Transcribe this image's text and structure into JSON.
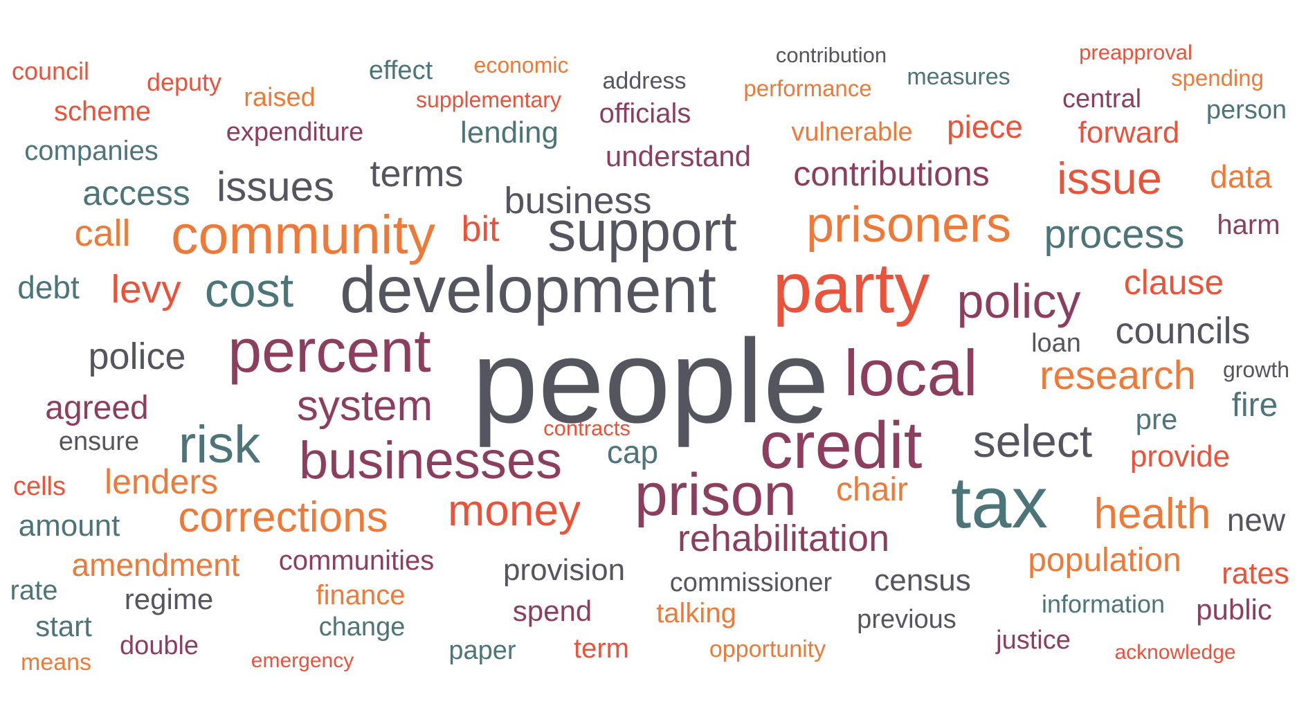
{
  "colors": {
    "slate": "#55555F",
    "teal": "#4D7478",
    "plum": "#8B3E5E",
    "red": "#EA533B",
    "orange": "#EC7A3A"
  },
  "words": [
    {
      "text": "people",
      "color": "slate"
    },
    {
      "text": "party",
      "color": "red"
    },
    {
      "text": "development",
      "color": "slate"
    },
    {
      "text": "credit",
      "color": "plum"
    },
    {
      "text": "tax",
      "color": "teal"
    },
    {
      "text": "support",
      "color": "slate"
    },
    {
      "text": "local",
      "color": "plum"
    },
    {
      "text": "percent",
      "color": "plum"
    },
    {
      "text": "prison",
      "color": "plum"
    },
    {
      "text": "community",
      "color": "orange"
    },
    {
      "text": "prisoners",
      "color": "orange"
    },
    {
      "text": "businesses",
      "color": "plum"
    },
    {
      "text": "risk",
      "color": "teal"
    },
    {
      "text": "cost",
      "color": "teal"
    },
    {
      "text": "policy",
      "color": "plum"
    },
    {
      "text": "select",
      "color": "slate"
    },
    {
      "text": "system",
      "color": "plum"
    },
    {
      "text": "corrections",
      "color": "orange"
    },
    {
      "text": "money",
      "color": "red"
    },
    {
      "text": "issue",
      "color": "red"
    },
    {
      "text": "research",
      "color": "orange"
    },
    {
      "text": "process",
      "color": "teal"
    },
    {
      "text": "rehabilitation",
      "color": "plum"
    },
    {
      "text": "health",
      "color": "orange"
    },
    {
      "text": "issues",
      "color": "slate"
    },
    {
      "text": "business",
      "color": "slate"
    },
    {
      "text": "councils",
      "color": "slate"
    },
    {
      "text": "police",
      "color": "slate"
    },
    {
      "text": "levy",
      "color": "red"
    },
    {
      "text": "clause",
      "color": "red"
    },
    {
      "text": "terms",
      "color": "slate"
    },
    {
      "text": "access",
      "color": "teal"
    },
    {
      "text": "lenders",
      "color": "orange"
    },
    {
      "text": "contributions",
      "color": "plum"
    },
    {
      "text": "population",
      "color": "orange"
    },
    {
      "text": "agreed",
      "color": "plum"
    },
    {
      "text": "call",
      "color": "orange"
    },
    {
      "text": "chair",
      "color": "orange"
    },
    {
      "text": "cap",
      "color": "teal"
    },
    {
      "text": "provide",
      "color": "red"
    },
    {
      "text": "fire",
      "color": "teal"
    },
    {
      "text": "bit",
      "color": "red"
    },
    {
      "text": "piece",
      "color": "red"
    },
    {
      "text": "data",
      "color": "orange"
    },
    {
      "text": "forward",
      "color": "red"
    },
    {
      "text": "amendment",
      "color": "orange"
    },
    {
      "text": "census",
      "color": "slate"
    },
    {
      "text": "provision",
      "color": "slate"
    },
    {
      "text": "understand",
      "color": "plum"
    },
    {
      "text": "debt",
      "color": "teal"
    },
    {
      "text": "new",
      "color": "slate"
    },
    {
      "text": "rates",
      "color": "red"
    },
    {
      "text": "harm",
      "color": "plum"
    },
    {
      "text": "lending",
      "color": "teal"
    },
    {
      "text": "amount",
      "color": "teal"
    },
    {
      "text": "regime",
      "color": "slate"
    },
    {
      "text": "communities",
      "color": "plum"
    },
    {
      "text": "commissioner",
      "color": "slate"
    },
    {
      "text": "spend",
      "color": "plum"
    },
    {
      "text": "talking",
      "color": "orange"
    },
    {
      "text": "public",
      "color": "plum"
    },
    {
      "text": "term",
      "color": "red"
    },
    {
      "text": "officials",
      "color": "plum"
    },
    {
      "text": "expenditure",
      "color": "plum"
    },
    {
      "text": "companies",
      "color": "teal"
    },
    {
      "text": "scheme",
      "color": "red"
    },
    {
      "text": "finance",
      "color": "orange"
    },
    {
      "text": "previous",
      "color": "slate"
    },
    {
      "text": "pre",
      "color": "teal"
    },
    {
      "text": "central",
      "color": "plum"
    },
    {
      "text": "person",
      "color": "teal"
    },
    {
      "text": "vulnerable",
      "color": "orange"
    },
    {
      "text": "raised",
      "color": "orange"
    },
    {
      "text": "loan",
      "color": "slate"
    },
    {
      "text": "start",
      "color": "teal"
    },
    {
      "text": "rate",
      "color": "teal"
    },
    {
      "text": "justice",
      "color": "plum"
    },
    {
      "text": "change",
      "color": "teal"
    },
    {
      "text": "paper",
      "color": "teal"
    },
    {
      "text": "double",
      "color": "plum"
    },
    {
      "text": "means",
      "color": "orange"
    },
    {
      "text": "information",
      "color": "teal"
    },
    {
      "text": "opportunity",
      "color": "orange"
    },
    {
      "text": "ensure",
      "color": "slate"
    },
    {
      "text": "cells",
      "color": "red"
    },
    {
      "text": "council",
      "color": "red"
    },
    {
      "text": "effect",
      "color": "teal"
    },
    {
      "text": "deputy",
      "color": "red"
    },
    {
      "text": "address",
      "color": "slate"
    },
    {
      "text": "measures",
      "color": "teal"
    },
    {
      "text": "spending",
      "color": "orange"
    },
    {
      "text": "growth",
      "color": "slate"
    },
    {
      "text": "performance",
      "color": "orange"
    },
    {
      "text": "economic",
      "color": "orange"
    },
    {
      "text": "supplementary",
      "color": "red"
    },
    {
      "text": "contribution",
      "color": "slate"
    },
    {
      "text": "preapproval",
      "color": "red"
    },
    {
      "text": "contracts",
      "color": "red"
    },
    {
      "text": "emergency",
      "color": "red"
    },
    {
      "text": "acknowledge",
      "color": "red"
    }
  ]
}
